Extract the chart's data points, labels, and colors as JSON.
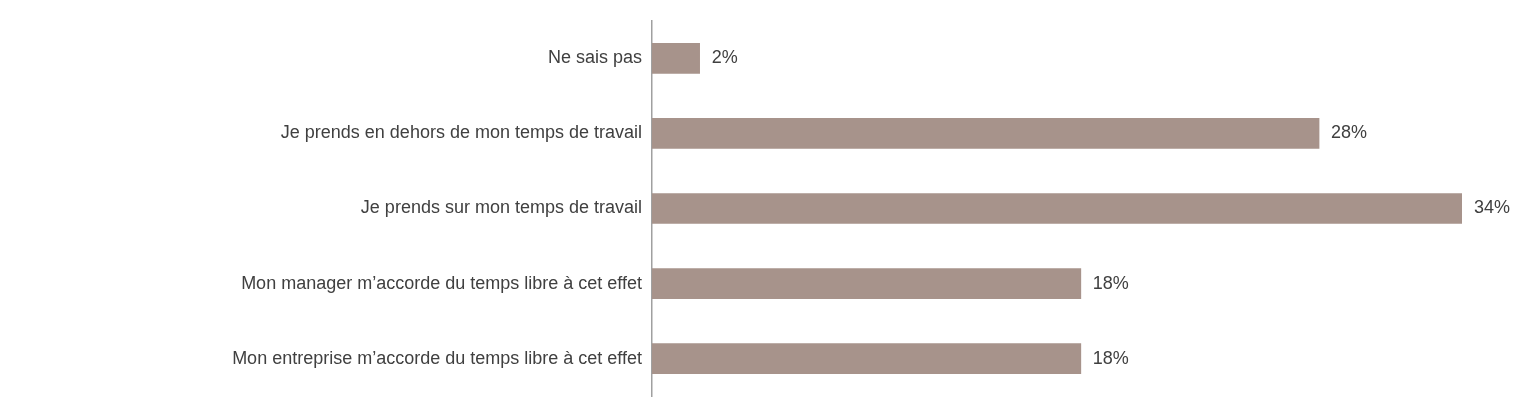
{
  "chart_data": {
    "type": "bar",
    "orientation": "horizontal",
    "categories": [
      "Ne sais pas",
      "Je prends en dehors de mon temps de travail",
      "Je prends sur mon temps de travail",
      "Mon manager m’accorde du temps libre à cet effet",
      "Mon entreprise m’accorde du temps libre à cet effet"
    ],
    "values": [
      2,
      28,
      34,
      18,
      18
    ],
    "value_labels": [
      "2%",
      "28%",
      "34%",
      "18%",
      "18%"
    ],
    "color": "#a7938b",
    "xlim": [
      0,
      34
    ],
    "tick_labels": "y",
    "legend": false
  }
}
